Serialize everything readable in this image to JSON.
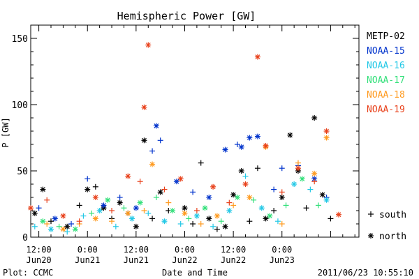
{
  "chart_data": {
    "type": "scatter",
    "title": "Hemispheric Power [GW]",
    "xlabel": "Date and Time",
    "ylabel": "P [GW]",
    "xlim": [
      "2011-06-20T10:00",
      "2011-06-23T19:00"
    ],
    "ylim": [
      0,
      160
    ],
    "y_ticks": [
      0,
      50,
      100,
      150
    ],
    "x_ticks": [
      {
        "t": "2011-06-20T12:00",
        "line1": "12:00",
        "line2": "Jun20"
      },
      {
        "t": "2011-06-21T00:00",
        "line1": "0:00",
        "line2": "Jun21"
      },
      {
        "t": "2011-06-21T12:00",
        "line1": "12:00",
        "line2": "Jun21"
      },
      {
        "t": "2011-06-22T00:00",
        "line1": "0:00",
        "line2": "Jun22"
      },
      {
        "t": "2011-06-22T12:00",
        "line1": "12:00",
        "line2": "Jun22"
      },
      {
        "t": "2011-06-23T00:00",
        "line1": "0:00",
        "line2": "Jun23"
      }
    ],
    "marker_legend": [
      {
        "marker": "plus",
        "label": "south"
      },
      {
        "marker": "star",
        "label": "north"
      }
    ],
    "series": [
      {
        "name": "METP-02",
        "color": "#000000",
        "points": [
          {
            "x": "2011-06-20T11:00",
            "y": 18,
            "m": "star"
          },
          {
            "x": "2011-06-20T13:00",
            "y": 36,
            "m": "star"
          },
          {
            "x": "2011-06-20T15:00",
            "y": 12,
            "m": "plus"
          },
          {
            "x": "2011-06-20T19:00",
            "y": 8,
            "m": "star"
          },
          {
            "x": "2011-06-20T22:00",
            "y": 24,
            "m": "plus"
          },
          {
            "x": "2011-06-21T00:00",
            "y": 36,
            "m": "star"
          },
          {
            "x": "2011-06-21T02:00",
            "y": 38,
            "m": "plus"
          },
          {
            "x": "2011-06-21T04:00",
            "y": 22,
            "m": "star"
          },
          {
            "x": "2011-06-21T06:00",
            "y": 14,
            "m": "plus"
          },
          {
            "x": "2011-06-21T08:00",
            "y": 26,
            "m": "star"
          },
          {
            "x": "2011-06-21T10:00",
            "y": 18,
            "m": "plus"
          },
          {
            "x": "2011-06-21T12:00",
            "y": 8,
            "m": "star"
          },
          {
            "x": "2011-06-21T14:00",
            "y": 73,
            "m": "star"
          },
          {
            "x": "2011-06-21T16:00",
            "y": 14,
            "m": "plus"
          },
          {
            "x": "2011-06-21T18:00",
            "y": 34,
            "m": "star"
          },
          {
            "x": "2011-06-21T20:00",
            "y": 20,
            "m": "plus"
          },
          {
            "x": "2011-06-22T00:00",
            "y": 22,
            "m": "star"
          },
          {
            "x": "2011-06-22T02:00",
            "y": 10,
            "m": "plus"
          },
          {
            "x": "2011-06-22T04:00",
            "y": 56,
            "m": "plus"
          },
          {
            "x": "2011-06-22T06:00",
            "y": 14,
            "m": "star"
          },
          {
            "x": "2011-06-22T08:00",
            "y": 6,
            "m": "plus"
          },
          {
            "x": "2011-06-22T10:00",
            "y": 8,
            "m": "star"
          },
          {
            "x": "2011-06-22T12:00",
            "y": 32,
            "m": "star"
          },
          {
            "x": "2011-06-22T14:00",
            "y": 50,
            "m": "star"
          },
          {
            "x": "2011-06-22T16:00",
            "y": 12,
            "m": "plus"
          },
          {
            "x": "2011-06-22T18:00",
            "y": 52,
            "m": "plus"
          },
          {
            "x": "2011-06-22T20:00",
            "y": 14,
            "m": "star"
          },
          {
            "x": "2011-06-22T22:00",
            "y": 20,
            "m": "plus"
          },
          {
            "x": "2011-06-23T00:00",
            "y": 30,
            "m": "star"
          },
          {
            "x": "2011-06-23T02:00",
            "y": 77,
            "m": "star"
          },
          {
            "x": "2011-06-23T04:00",
            "y": 50,
            "m": "star"
          },
          {
            "x": "2011-06-23T06:00",
            "y": 22,
            "m": "plus"
          },
          {
            "x": "2011-06-23T08:00",
            "y": 90,
            "m": "star"
          },
          {
            "x": "2011-06-23T10:00",
            "y": 32,
            "m": "star"
          },
          {
            "x": "2011-06-23T12:00",
            "y": 14,
            "m": "plus"
          }
        ]
      },
      {
        "name": "NOAA-15",
        "color": "#0033cc",
        "points": [
          {
            "x": "2011-06-20T12:00",
            "y": 22,
            "m": "plus"
          },
          {
            "x": "2011-06-20T16:00",
            "y": 14,
            "m": "star"
          },
          {
            "x": "2011-06-20T20:00",
            "y": 10,
            "m": "plus"
          },
          {
            "x": "2011-06-21T00:00",
            "y": 44,
            "m": "plus"
          },
          {
            "x": "2011-06-21T04:00",
            "y": 24,
            "m": "star"
          },
          {
            "x": "2011-06-21T08:00",
            "y": 30,
            "m": "plus"
          },
          {
            "x": "2011-06-21T12:00",
            "y": 22,
            "m": "star"
          },
          {
            "x": "2011-06-21T16:00",
            "y": 65,
            "m": "plus"
          },
          {
            "x": "2011-06-21T17:00",
            "y": 84,
            "m": "star"
          },
          {
            "x": "2011-06-21T18:00",
            "y": 73,
            "m": "plus"
          },
          {
            "x": "2011-06-21T22:00",
            "y": 42,
            "m": "star"
          },
          {
            "x": "2011-06-22T02:00",
            "y": 34,
            "m": "plus"
          },
          {
            "x": "2011-06-22T06:00",
            "y": 30,
            "m": "star"
          },
          {
            "x": "2011-06-22T10:00",
            "y": 66,
            "m": "star"
          },
          {
            "x": "2011-06-22T13:00",
            "y": 70,
            "m": "plus"
          },
          {
            "x": "2011-06-22T14:00",
            "y": 68,
            "m": "star"
          },
          {
            "x": "2011-06-22T16:00",
            "y": 75,
            "m": "star"
          },
          {
            "x": "2011-06-22T18:00",
            "y": 76,
            "m": "star"
          },
          {
            "x": "2011-06-22T22:00",
            "y": 36,
            "m": "plus"
          },
          {
            "x": "2011-06-23T00:00",
            "y": 52,
            "m": "plus"
          },
          {
            "x": "2011-06-23T04:00",
            "y": 54,
            "m": "plus"
          },
          {
            "x": "2011-06-23T08:00",
            "y": 44,
            "m": "star"
          },
          {
            "x": "2011-06-23T11:00",
            "y": 30,
            "m": "plus"
          }
        ]
      },
      {
        "name": "NOAA-16",
        "color": "#22c8e6",
        "points": [
          {
            "x": "2011-06-20T11:00",
            "y": 8,
            "m": "plus"
          },
          {
            "x": "2011-06-20T15:00",
            "y": 6,
            "m": "star"
          },
          {
            "x": "2011-06-20T19:00",
            "y": 4,
            "m": "plus"
          },
          {
            "x": "2011-06-20T23:00",
            "y": 16,
            "m": "plus"
          },
          {
            "x": "2011-06-21T03:00",
            "y": 20,
            "m": "star"
          },
          {
            "x": "2011-06-21T07:00",
            "y": 8,
            "m": "plus"
          },
          {
            "x": "2011-06-21T11:00",
            "y": 14,
            "m": "star"
          },
          {
            "x": "2011-06-21T15:00",
            "y": 18,
            "m": "plus"
          },
          {
            "x": "2011-06-21T19:00",
            "y": 12,
            "m": "star"
          },
          {
            "x": "2011-06-21T23:00",
            "y": 10,
            "m": "plus"
          },
          {
            "x": "2011-06-22T03:00",
            "y": 16,
            "m": "star"
          },
          {
            "x": "2011-06-22T07:00",
            "y": 8,
            "m": "plus"
          },
          {
            "x": "2011-06-22T11:00",
            "y": 20,
            "m": "star"
          },
          {
            "x": "2011-06-22T15:00",
            "y": 46,
            "m": "plus"
          },
          {
            "x": "2011-06-22T19:00",
            "y": 22,
            "m": "star"
          },
          {
            "x": "2011-06-22T23:00",
            "y": 12,
            "m": "plus"
          },
          {
            "x": "2011-06-23T03:00",
            "y": 40,
            "m": "star"
          },
          {
            "x": "2011-06-23T07:00",
            "y": 36,
            "m": "plus"
          },
          {
            "x": "2011-06-23T11:00",
            "y": 28,
            "m": "star"
          }
        ]
      },
      {
        "name": "NOAA-17",
        "color": "#33e07a",
        "points": [
          {
            "x": "2011-06-20T13:00",
            "y": 12,
            "m": "star"
          },
          {
            "x": "2011-06-20T17:00",
            "y": 8,
            "m": "plus"
          },
          {
            "x": "2011-06-20T21:00",
            "y": 6,
            "m": "star"
          },
          {
            "x": "2011-06-21T01:00",
            "y": 18,
            "m": "plus"
          },
          {
            "x": "2011-06-21T05:00",
            "y": 28,
            "m": "star"
          },
          {
            "x": "2011-06-21T09:00",
            "y": 22,
            "m": "plus"
          },
          {
            "x": "2011-06-21T13:00",
            "y": 26,
            "m": "star"
          },
          {
            "x": "2011-06-21T17:00",
            "y": 30,
            "m": "plus"
          },
          {
            "x": "2011-06-21T21:00",
            "y": 20,
            "m": "star"
          },
          {
            "x": "2011-06-22T01:00",
            "y": 14,
            "m": "plus"
          },
          {
            "x": "2011-06-22T05:00",
            "y": 22,
            "m": "star"
          },
          {
            "x": "2011-06-22T09:00",
            "y": 12,
            "m": "plus"
          },
          {
            "x": "2011-06-22T13:00",
            "y": 30,
            "m": "star"
          },
          {
            "x": "2011-06-22T17:00",
            "y": 28,
            "m": "plus"
          },
          {
            "x": "2011-06-22T21:00",
            "y": 16,
            "m": "star"
          },
          {
            "x": "2011-06-23T01:00",
            "y": 24,
            "m": "plus"
          },
          {
            "x": "2011-06-23T05:00",
            "y": 44,
            "m": "star"
          },
          {
            "x": "2011-06-23T09:00",
            "y": 24,
            "m": "plus"
          }
        ]
      },
      {
        "name": "NOAA-18",
        "color": "#ff9a1e",
        "points": [
          {
            "x": "2011-06-20T14:00",
            "y": 10,
            "m": "plus"
          },
          {
            "x": "2011-06-20T18:00",
            "y": 6,
            "m": "star"
          },
          {
            "x": "2011-06-20T22:00",
            "y": 10,
            "m": "plus"
          },
          {
            "x": "2011-06-21T02:00",
            "y": 14,
            "m": "star"
          },
          {
            "x": "2011-06-21T06:00",
            "y": 12,
            "m": "plus"
          },
          {
            "x": "2011-06-21T10:00",
            "y": 18,
            "m": "star"
          },
          {
            "x": "2011-06-21T14:00",
            "y": 20,
            "m": "plus"
          },
          {
            "x": "2011-06-21T16:00",
            "y": 55,
            "m": "star"
          },
          {
            "x": "2011-06-21T20:00",
            "y": 26,
            "m": "plus"
          },
          {
            "x": "2011-06-22T00:00",
            "y": 18,
            "m": "star"
          },
          {
            "x": "2011-06-22T04:00",
            "y": 10,
            "m": "plus"
          },
          {
            "x": "2011-06-22T08:00",
            "y": 16,
            "m": "star"
          },
          {
            "x": "2011-06-22T12:00",
            "y": 24,
            "m": "plus"
          },
          {
            "x": "2011-06-22T16:00",
            "y": 30,
            "m": "star"
          },
          {
            "x": "2011-06-22T20:00",
            "y": 68,
            "m": "star"
          },
          {
            "x": "2011-06-23T00:00",
            "y": 10,
            "m": "plus"
          },
          {
            "x": "2011-06-23T04:00",
            "y": 56,
            "m": "plus"
          },
          {
            "x": "2011-06-23T08:00",
            "y": 48,
            "m": "star"
          },
          {
            "x": "2011-06-23T11:00",
            "y": 75,
            "m": "star"
          }
        ]
      },
      {
        "name": "NOAA-19",
        "color": "#e8401a",
        "points": [
          {
            "x": "2011-06-20T10:00",
            "y": 22,
            "m": "star"
          },
          {
            "x": "2011-06-20T14:00",
            "y": 28,
            "m": "plus"
          },
          {
            "x": "2011-06-20T18:00",
            "y": 16,
            "m": "star"
          },
          {
            "x": "2011-06-20T22:00",
            "y": 12,
            "m": "plus"
          },
          {
            "x": "2011-06-21T02:00",
            "y": 30,
            "m": "star"
          },
          {
            "x": "2011-06-21T06:00",
            "y": 20,
            "m": "plus"
          },
          {
            "x": "2011-06-21T10:00",
            "y": 46,
            "m": "star"
          },
          {
            "x": "2011-06-21T13:00",
            "y": 42,
            "m": "plus"
          },
          {
            "x": "2011-06-21T14:00",
            "y": 98,
            "m": "star"
          },
          {
            "x": "2011-06-21T15:00",
            "y": 145,
            "m": "star"
          },
          {
            "x": "2011-06-21T19:00",
            "y": 36,
            "m": "plus"
          },
          {
            "x": "2011-06-21T23:00",
            "y": 44,
            "m": "star"
          },
          {
            "x": "2011-06-22T03:00",
            "y": 20,
            "m": "plus"
          },
          {
            "x": "2011-06-22T07:00",
            "y": 38,
            "m": "star"
          },
          {
            "x": "2011-06-22T11:00",
            "y": 26,
            "m": "plus"
          },
          {
            "x": "2011-06-22T15:00",
            "y": 40,
            "m": "star"
          },
          {
            "x": "2011-06-22T18:00",
            "y": 136,
            "m": "star"
          },
          {
            "x": "2011-06-22T20:00",
            "y": 69,
            "m": "star"
          },
          {
            "x": "2011-06-23T00:00",
            "y": 34,
            "m": "plus"
          },
          {
            "x": "2011-06-23T04:00",
            "y": 52,
            "m": "star"
          },
          {
            "x": "2011-06-23T08:00",
            "y": 42,
            "m": "plus"
          },
          {
            "x": "2011-06-23T11:00",
            "y": 80,
            "m": "star"
          },
          {
            "x": "2011-06-23T14:00",
            "y": 17,
            "m": "star"
          }
        ]
      }
    ]
  },
  "footer": {
    "left": "Plot: CCMC",
    "right": "2011/06/23 10:55:10"
  }
}
